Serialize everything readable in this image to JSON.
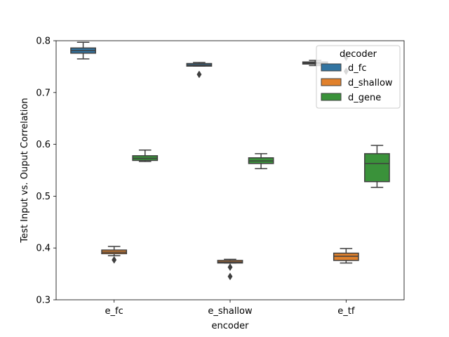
{
  "chart_data": {
    "type": "box",
    "title": "",
    "xlabel": "encoder",
    "ylabel": "Test Input vs. Ouput Correlation",
    "categories": [
      "e_fc",
      "e_shallow",
      "e_tf"
    ],
    "ylim": [
      0.3,
      0.8
    ],
    "yticks": [
      0.3,
      0.4,
      0.5,
      0.6,
      0.7,
      0.8
    ],
    "ytick_labels": [
      "0.3",
      "0.4",
      "0.5",
      "0.6",
      "0.7",
      "0.8"
    ],
    "grid": false,
    "legend": {
      "title": "decoder",
      "position": "top-right"
    },
    "series": [
      {
        "name": "d_fc",
        "color": "#3274a1",
        "boxes": [
          {
            "whislo": 0.765,
            "q1": 0.776,
            "median": 0.781,
            "q3": 0.786,
            "whishi": 0.797,
            "fliers": []
          },
          {
            "whislo": 0.751,
            "q1": 0.751,
            "median": 0.753,
            "q3": 0.756,
            "whishi": 0.758,
            "fliers": [
              0.735
            ]
          },
          {
            "whislo": 0.752,
            "q1": 0.755,
            "median": 0.757,
            "q3": 0.759,
            "whishi": 0.762,
            "fliers": []
          }
        ]
      },
      {
        "name": "d_shallow",
        "color": "#e1812c",
        "boxes": [
          {
            "whislo": 0.385,
            "q1": 0.389,
            "median": 0.392,
            "q3": 0.396,
            "whishi": 0.403,
            "fliers": [
              0.377
            ]
          },
          {
            "whislo": 0.371,
            "q1": 0.371,
            "median": 0.373,
            "q3": 0.376,
            "whishi": 0.378,
            "fliers": [
              0.363,
              0.345
            ]
          },
          {
            "whislo": 0.371,
            "q1": 0.376,
            "median": 0.384,
            "q3": 0.39,
            "whishi": 0.399,
            "fliers": []
          }
        ]
      },
      {
        "name": "d_gene",
        "color": "#3a923a",
        "boxes": [
          {
            "whislo": 0.567,
            "q1": 0.569,
            "median": 0.573,
            "q3": 0.578,
            "whishi": 0.589,
            "fliers": []
          },
          {
            "whislo": 0.553,
            "q1": 0.563,
            "median": 0.568,
            "q3": 0.574,
            "whishi": 0.582,
            "fliers": []
          },
          {
            "whislo": 0.517,
            "q1": 0.528,
            "median": 0.563,
            "q3": 0.582,
            "whishi": 0.598,
            "fliers": []
          }
        ]
      }
    ],
    "extra_fliers": [
      {
        "category": "e_tf",
        "values": [
          0.768,
          0.741
        ]
      }
    ]
  }
}
